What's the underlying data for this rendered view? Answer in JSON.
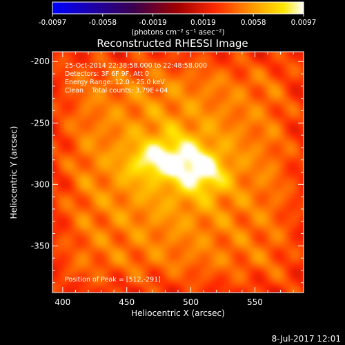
{
  "colorbar": {
    "ticks": [
      "-0.0097",
      "-0.0058",
      "-0.0019",
      "0.0019",
      "0.0058",
      "0.0097"
    ],
    "unit_label": "(photons cm⁻² s⁻¹ asec⁻²)"
  },
  "timestamp": "8-Jul-2017 12:01",
  "chart_data": {
    "type": "heatmap",
    "title": "Reconstructed RHESSI Image",
    "xlabel": "Heliocentric X (arcsec)",
    "ylabel": "Heliocentric Y (arcsec)",
    "xlim": [
      392,
      588
    ],
    "ylim": [
      -388,
      -192
    ],
    "x_ticks": [
      400,
      450,
      500,
      550
    ],
    "y_ticks": [
      -200,
      -250,
      -300,
      -350
    ],
    "colormap": "hot (blue-purple-red-orange-yellow-white)",
    "value_range": [
      -0.0097,
      0.0097
    ],
    "background_level": 0.0045,
    "sources": [
      {
        "x": 512,
        "y": -291,
        "peak": 0.0097,
        "width": 12
      },
      {
        "x": 497,
        "y": -283,
        "peak": 0.009,
        "width": 13
      },
      {
        "x": 482,
        "y": -276,
        "peak": 0.008,
        "width": 12
      },
      {
        "x": 470,
        "y": -281,
        "peak": 0.0072,
        "width": 10
      },
      {
        "x": 458,
        "y": -283,
        "peak": 0.0066,
        "width": 10
      }
    ],
    "annotations": [
      "25-Oct-2014 22:38:58.000 to 22:48:58.000",
      "Detectors: 3F 6F 9F, Att 0",
      "Energy Range: 12.0 - 25.0 keV",
      "Clean    Total counts: 3.79E+04"
    ],
    "peak_label": "Position of Peak = [512,-291]"
  }
}
